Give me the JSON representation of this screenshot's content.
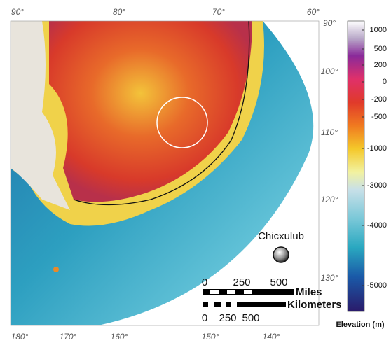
{
  "map": {
    "top_labels": [
      "90°",
      "80°",
      "70°",
      "60°"
    ],
    "right_labels": [
      "90°",
      "100°",
      "110°",
      "120°",
      "130°"
    ],
    "bottom_labels": [
      "180°",
      "170°",
      "160°",
      "150°",
      "140°"
    ],
    "site_label": "Chicxulub",
    "scale_bar": {
      "miles_ticks": [
        "0",
        "250",
        "500"
      ],
      "miles_unit": "Miles",
      "km_ticks": [
        "0",
        "250",
        "500"
      ],
      "km_unit": "Kilometers"
    }
  },
  "colorbar": {
    "title": "Elevation (m)",
    "ticks": [
      1000,
      500,
      200,
      0,
      -200,
      -500,
      -1000,
      -3000,
      -4000,
      -5000
    ]
  }
}
